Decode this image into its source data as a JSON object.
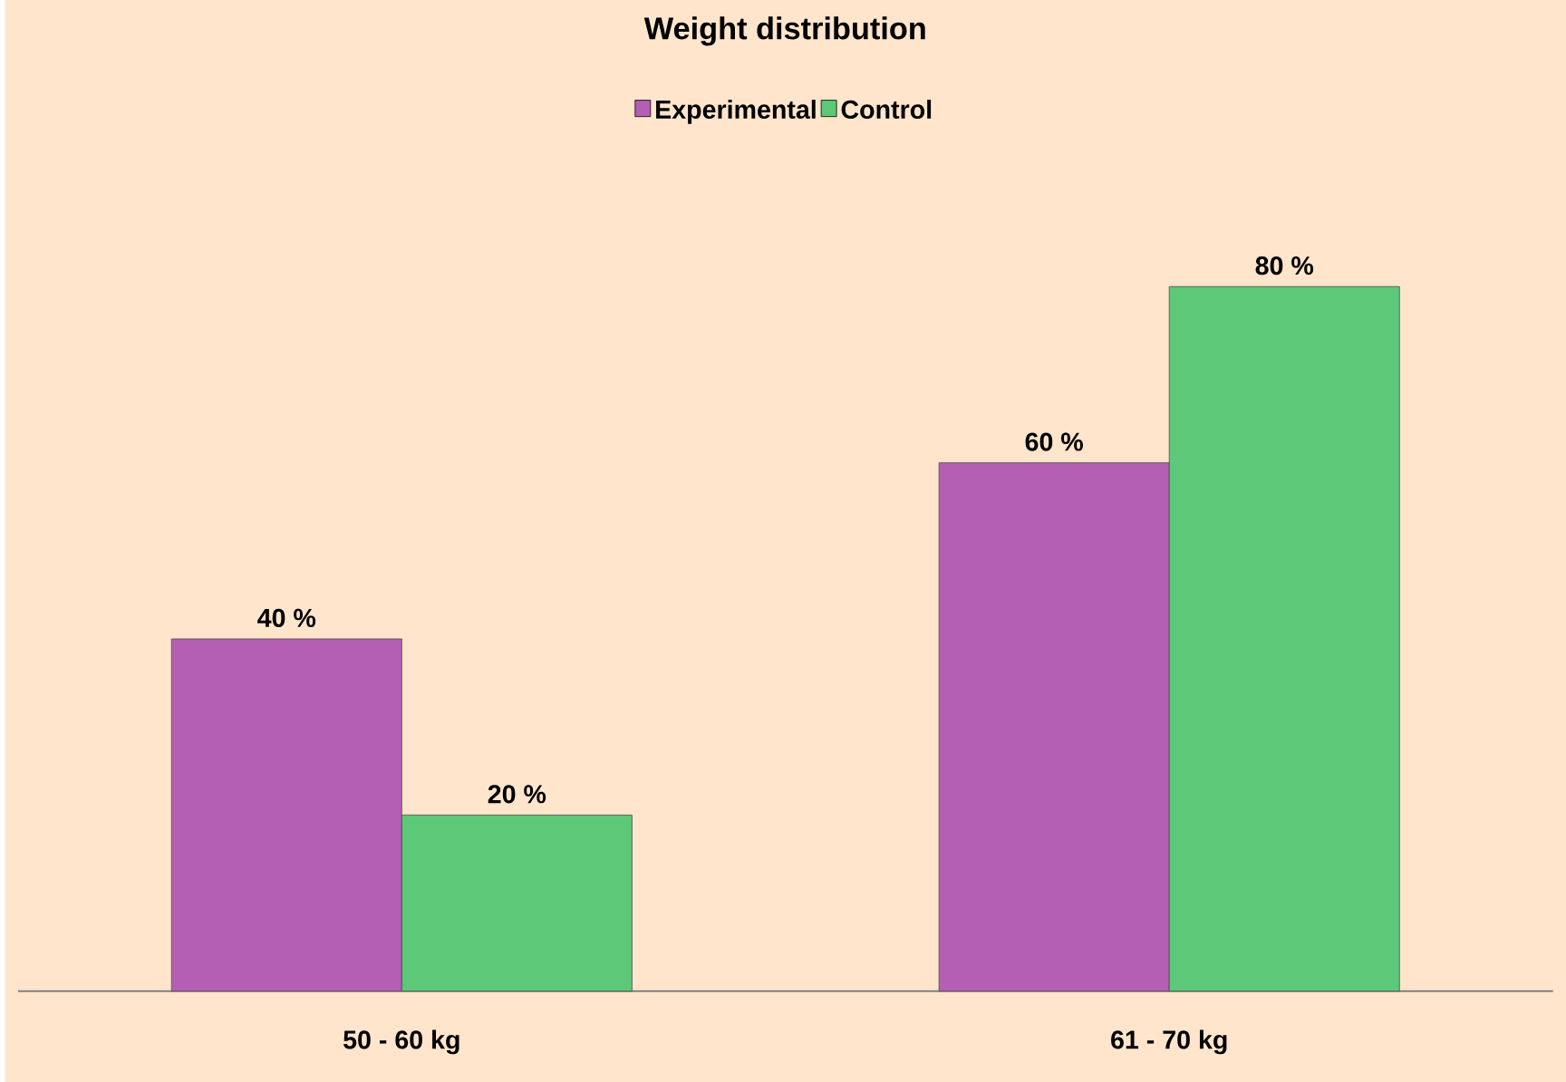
{
  "chart_data": {
    "type": "bar",
    "title": "Weight distribution",
    "categories": [
      "50 - 60 kg",
      "61 - 70 kg"
    ],
    "series": [
      {
        "name": "Experimental",
        "color": "#b45eb4",
        "values": [
          40,
          60
        ],
        "value_labels": [
          "40 %",
          "60 %"
        ]
      },
      {
        "name": "Control",
        "color": "#5cc878",
        "values": [
          20,
          80
        ],
        "value_labels": [
          "20 %",
          "80 %"
        ]
      }
    ],
    "legend": "top"
  }
}
